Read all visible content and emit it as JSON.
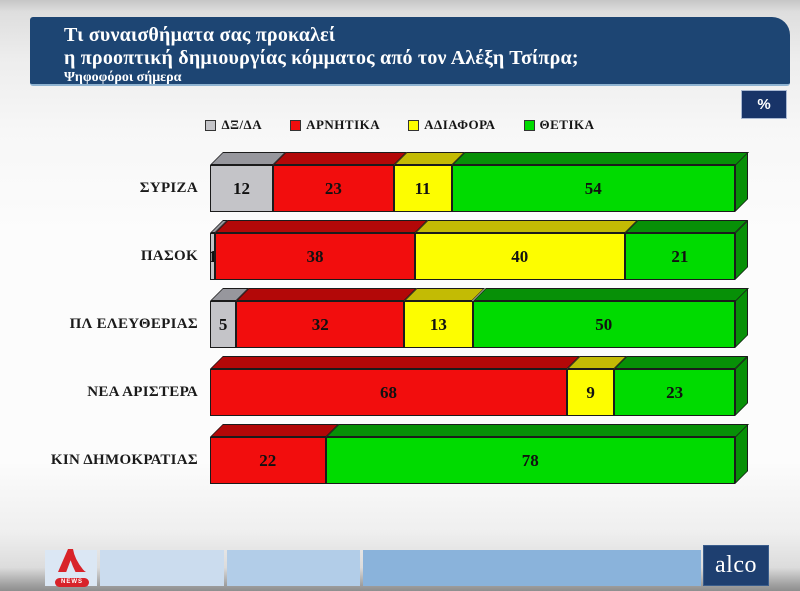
{
  "header": {
    "title_line1": "Τι συναισθήματα σας προκαλεί",
    "title_line2": "η προοπτική δημιουργίας κόμματος από τον Αλέξη Τσίπρα;",
    "subtitle": "Ψηφοφόροι σήμερα"
  },
  "percent_badge": "%",
  "chart_data": {
    "type": "bar",
    "variant": "stacked-horizontal-3d",
    "unit": "%",
    "xlim": [
      0,
      100
    ],
    "legend_position": "top-center",
    "categories": [
      "ΣΥΡΙΖΑ",
      "ΠΑΣΟΚ",
      "ΠΛ ΕΛΕΥΘΕΡΙΑΣ",
      "ΝΕΑ ΑΡΙΣΤΕΡΑ",
      "ΚΙΝ ΔΗΜΟΚΡΑΤΙΑΣ"
    ],
    "series": [
      {
        "name": "ΔΞ/ΔΑ",
        "color": "#c4c4c8",
        "shade": "#97979d",
        "values": [
          12,
          1,
          5,
          0,
          0
        ]
      },
      {
        "name": "ΑΡΝΗΤΙΚΑ",
        "color": "#f20d0d",
        "shade": "#b30808",
        "values": [
          23,
          38,
          32,
          68,
          22
        ]
      },
      {
        "name": "ΑΔΙΑΦΟΡΑ",
        "color": "#fdfd00",
        "shade": "#c3bb04",
        "values": [
          11,
          40,
          13,
          9,
          0
        ]
      },
      {
        "name": "ΘΕΤΙΚΑ",
        "color": "#00db00",
        "shade": "#079007",
        "values": [
          54,
          21,
          50,
          23,
          78
        ]
      }
    ]
  },
  "footer": {
    "alpha_news_label": "NEWS",
    "alco_label": "alco"
  }
}
